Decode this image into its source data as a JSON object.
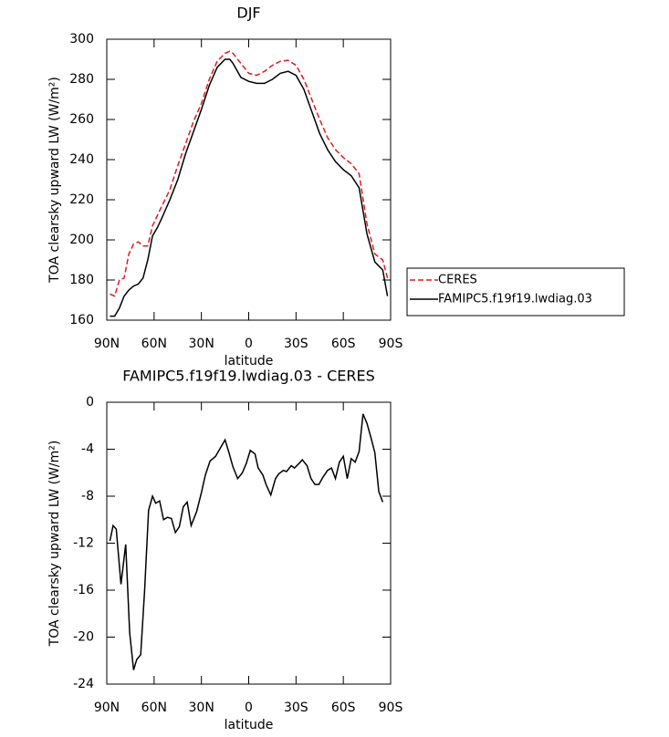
{
  "chart_data": [
    {
      "type": "line",
      "title": "DJF",
      "xlabel": "latitude",
      "ylabel": "TOA clearsky upward LW (W/m²)",
      "x": [
        88,
        85,
        82,
        79,
        76,
        73,
        70,
        67,
        64,
        61,
        58,
        55,
        50,
        45,
        40,
        35,
        30,
        25,
        20,
        15,
        12,
        10,
        5,
        0,
        -5,
        -10,
        -15,
        -20,
        -25,
        -30,
        -35,
        -40,
        -45,
        -50,
        -55,
        -60,
        -65,
        -70,
        -75,
        -80,
        -85,
        -88
      ],
      "series": [
        {
          "name": "CERES",
          "color": "#e31a1c",
          "style": "dashed",
          "values": [
            173,
            172,
            180,
            181,
            193,
            198,
            199,
            197,
            197,
            207,
            212,
            217,
            225,
            237,
            248,
            259,
            268,
            280,
            289,
            293,
            294,
            293,
            288,
            283,
            282,
            284,
            287,
            289,
            289.5,
            287,
            280,
            270,
            260,
            251,
            245,
            241,
            238,
            233,
            208,
            193,
            190,
            181
          ]
        },
        {
          "name": "FAMIPC5.f19f19.lwdiag.03",
          "color": "#000000",
          "style": "solid",
          "values": [
            162,
            162,
            166,
            172,
            175,
            177,
            178,
            181,
            190,
            202,
            206,
            211,
            220,
            230,
            243,
            254,
            265,
            277,
            286,
            290,
            290,
            288,
            281,
            279,
            278,
            278,
            280,
            283,
            284,
            282,
            275,
            264,
            253,
            245,
            239,
            235,
            232,
            226,
            203,
            189,
            185,
            172
          ]
        }
      ],
      "xlim": [
        90,
        -90
      ],
      "xticks": [
        {
          "value": 90,
          "label": "90N"
        },
        {
          "value": 60,
          "label": "60N"
        },
        {
          "value": 30,
          "label": "30N"
        },
        0,
        {
          "value": -30,
          "label": "30S"
        },
        {
          "value": -60,
          "label": "60S"
        },
        {
          "value": -90,
          "label": "90S"
        }
      ],
      "ylim": [
        160,
        300
      ],
      "yticks": [
        160,
        180,
        200,
        220,
        240,
        260,
        280,
        300
      ],
      "legend": "outside-right"
    },
    {
      "type": "line",
      "title": "FAMIPC5.f19f19.lwdiag.03 - CERES",
      "xlabel": "latitude",
      "ylabel": "TOA clearsky upward LW (W/m²)",
      "x": [
        88,
        86,
        84,
        81,
        78,
        75.5,
        73,
        71,
        68.5,
        66,
        63.5,
        61,
        59,
        56.5,
        54,
        51.5,
        49,
        46.5,
        44,
        41.5,
        39,
        36.5,
        33,
        30,
        27.5,
        24.5,
        21,
        18,
        15,
        12.5,
        10,
        7,
        4,
        1.5,
        -1,
        -4,
        -6,
        -9,
        -11,
        -14,
        -17,
        -19,
        -22,
        -24,
        -27,
        -29,
        -32,
        -34,
        -37,
        -39.5,
        -42,
        -44.5,
        -47,
        -50,
        -52.5,
        -55,
        -57.5,
        -60,
        -62.5,
        -65,
        -67.5,
        -70,
        -72.5,
        -75,
        -77.5,
        -80,
        -82.5,
        -85
      ],
      "series": [
        {
          "name": "FAMIPC5.f19f19.lwdiag.03 - CERES",
          "color": "#000000",
          "style": "solid",
          "values": [
            -11.8,
            -10.5,
            -10.8,
            -15.5,
            -12.1,
            -19.6,
            -22.8,
            -21.9,
            -21.5,
            -16,
            -9.2,
            -8,
            -8.6,
            -8.4,
            -10,
            -9.8,
            -9.9,
            -11.1,
            -10.6,
            -8.9,
            -8.5,
            -10.5,
            -9.3,
            -7.7,
            -6.2,
            -5,
            -4.6,
            -3.9,
            -3.2,
            -4.3,
            -5.5,
            -6.5,
            -6,
            -5.2,
            -4.1,
            -4.4,
            -5.6,
            -6.2,
            -7,
            -7.9,
            -6.5,
            -6.1,
            -5.8,
            -5.9,
            -5.4,
            -5.6,
            -5.2,
            -4.9,
            -5.4,
            -6.5,
            -7,
            -7,
            -6.4,
            -5.8,
            -5.6,
            -6.5,
            -5.1,
            -4.6,
            -6.5,
            -4.8,
            -5.1,
            -4.2,
            -1,
            -1.8,
            -3,
            -4.3,
            -7.6,
            -8.5
          ]
        }
      ],
      "xlim": [
        90,
        -90
      ],
      "xticks": [
        {
          "value": 90,
          "label": "90N"
        },
        {
          "value": 60,
          "label": "60N"
        },
        {
          "value": 30,
          "label": "30N"
        },
        0,
        {
          "value": -30,
          "label": "30S"
        },
        {
          "value": -60,
          "label": "60S"
        },
        {
          "value": -90,
          "label": "90S"
        }
      ],
      "ylim": [
        -24,
        0
      ],
      "yticks": [
        -24,
        -20,
        -16,
        -12,
        -8,
        -4,
        0
      ]
    }
  ]
}
